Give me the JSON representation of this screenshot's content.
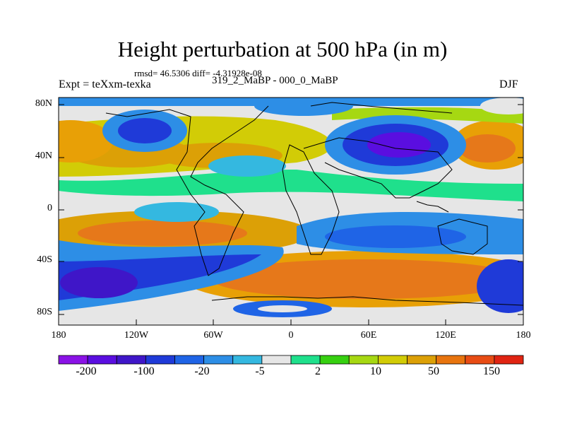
{
  "title": "Height perturbation at 500 hPa (in m)",
  "stats_line": "rmsd= 46.5306 diff= -4.31928e-08",
  "left_label": "Expt = teXxm-texka",
  "center_label": "319_2_MaBP - 000_0_MaBP",
  "right_label": "DJF",
  "y_ticks": [
    "80N",
    "40N",
    "0",
    "40S",
    "80S"
  ],
  "x_ticks": [
    "180",
    "120W",
    "60W",
    "0",
    "60E",
    "120E",
    "180"
  ],
  "colorbar": {
    "colors": [
      "#8a12e6",
      "#5a0ee0",
      "#3f16c8",
      "#1f3ad8",
      "#1f64e6",
      "#2d8ee6",
      "#34b8e0",
      "#e6e6e6",
      "#1fe08c",
      "#36d010",
      "#a6d812",
      "#d2cc06",
      "#dca006",
      "#e8740e",
      "#e84c14",
      "#e02412"
    ],
    "labels": [
      "-200",
      "-100",
      "-20",
      "-5",
      "2",
      "10",
      "50",
      "150"
    ]
  }
}
